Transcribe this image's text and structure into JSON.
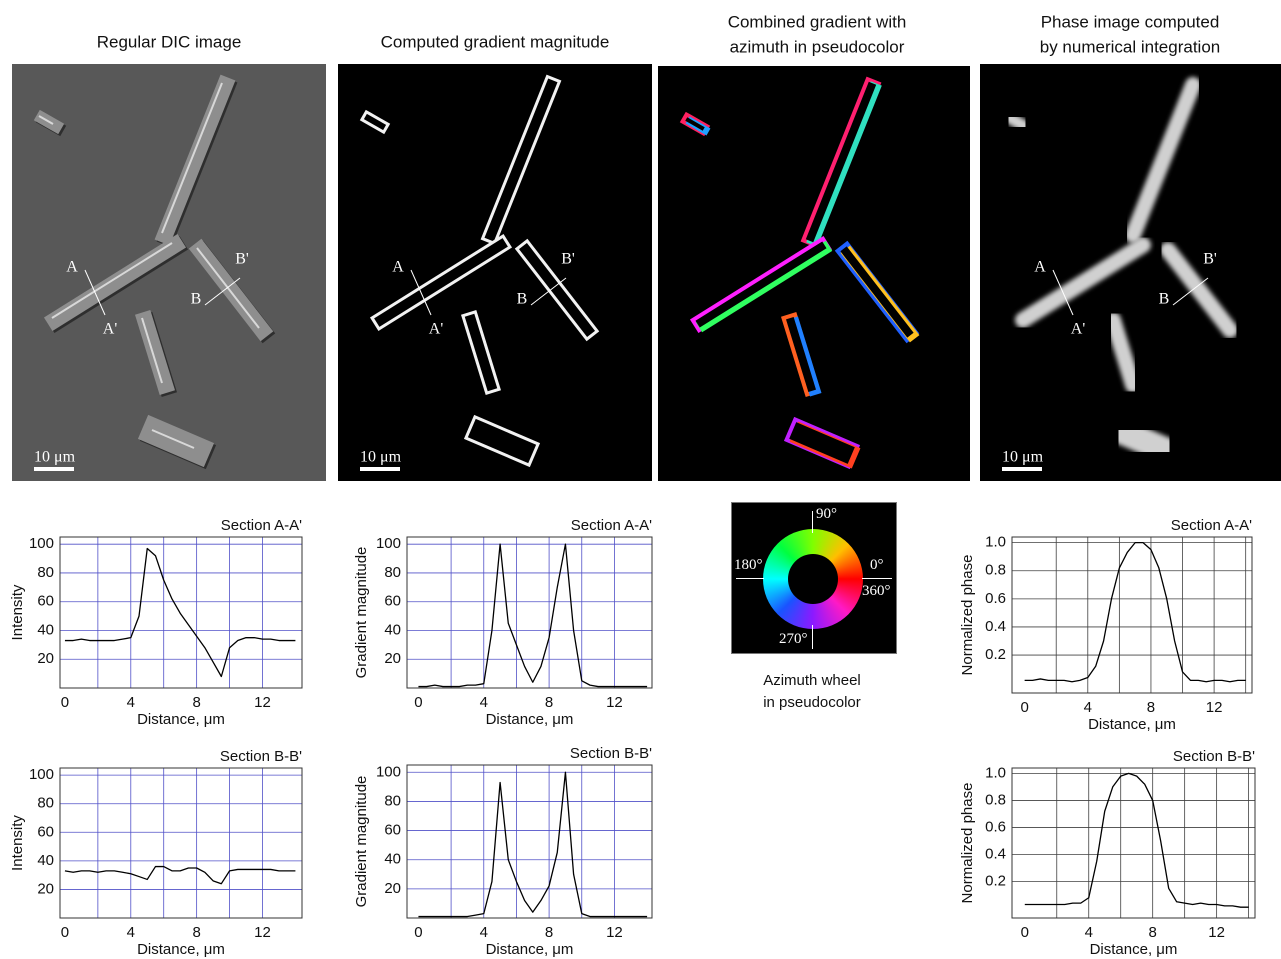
{
  "panels": [
    {
      "title_lines": [
        "Regular DIC image"
      ],
      "labels": [
        "A",
        "A'",
        "B",
        "B'"
      ],
      "scale": "10 μm"
    },
    {
      "title_lines": [
        "Computed gradient magnitude"
      ],
      "labels": [
        "A",
        "A'",
        "B",
        "B'"
      ],
      "scale": "10 μm"
    },
    {
      "title_lines": [
        "Combined gradient with",
        "azimuth in pseudocolor"
      ]
    },
    {
      "title_lines": [
        "Phase image computed",
        "by numerical integration"
      ],
      "labels": [
        "A",
        "A'",
        "B",
        "B'"
      ],
      "scale": "10 μm"
    }
  ],
  "wheel": {
    "angle_labels": [
      "90°",
      "0°",
      "180°",
      "360°",
      "270°"
    ],
    "caption_lines": [
      "Azimuth wheel",
      "in pseudocolor"
    ]
  },
  "chart_data": [
    {
      "type": "line",
      "title": "Section A-A'",
      "xlabel": "Distance, μm",
      "ylabel": "Intensity",
      "color": "#000000",
      "x": [
        0,
        0.5,
        1,
        1.5,
        2,
        2.5,
        3,
        3.5,
        4,
        4.5,
        5,
        5.5,
        6,
        6.5,
        7,
        7.5,
        8,
        8.5,
        9,
        9.5,
        10,
        10.5,
        11,
        11.5,
        12,
        12.5,
        13,
        13.5,
        14
      ],
      "values": [
        33,
        33,
        34,
        33,
        33,
        33,
        33,
        34,
        35,
        50,
        97,
        92,
        75,
        62,
        52,
        44,
        36,
        28,
        18,
        8,
        28,
        33,
        35,
        35,
        34,
        34,
        33,
        33,
        33
      ],
      "xlim": [
        -0.3,
        14.4
      ],
      "ylim": [
        0,
        105
      ],
      "xticks": [
        0,
        4,
        8,
        12
      ],
      "yticks": [
        20,
        40,
        60,
        80,
        100
      ],
      "xgrid": [
        2,
        4,
        6,
        8,
        10,
        12
      ],
      "grid": true,
      "grid_color": "#5050c8"
    },
    {
      "type": "line",
      "title": "Section A-A'",
      "xlabel": "Distance, μm",
      "ylabel": "Gradient magnitude",
      "color": "#000000",
      "x": [
        0,
        0.5,
        1,
        1.5,
        2,
        2.5,
        3,
        3.5,
        4,
        4.5,
        5,
        5.5,
        6,
        6.5,
        7,
        7.5,
        8,
        8.5,
        9,
        9.5,
        10,
        10.5,
        11,
        11.5,
        12,
        12.5,
        13,
        13.5,
        14
      ],
      "values": [
        1,
        1,
        2,
        1,
        1,
        1,
        2,
        2,
        3,
        40,
        100,
        45,
        30,
        15,
        4,
        15,
        35,
        70,
        100,
        40,
        5,
        2,
        1,
        1,
        1,
        1,
        1,
        1,
        1
      ],
      "xlim": [
        -0.7,
        14.3
      ],
      "ylim": [
        0,
        105
      ],
      "xticks": [
        0,
        4,
        8,
        12
      ],
      "yticks": [
        20,
        40,
        60,
        80,
        100
      ],
      "xgrid": [
        2,
        4,
        6,
        8,
        10,
        12
      ],
      "grid": true,
      "grid_color": "#5050c8"
    },
    {
      "type": "line",
      "title": "Section B-B'",
      "xlabel": "Distance, μm",
      "ylabel": "Intensity",
      "color": "#000000",
      "x": [
        0,
        0.5,
        1,
        1.5,
        2,
        2.5,
        3,
        3.5,
        4,
        4.5,
        5,
        5.5,
        6,
        6.5,
        7,
        7.5,
        8,
        8.5,
        9,
        9.5,
        10,
        10.5,
        11,
        11.5,
        12,
        12.5,
        13,
        13.5,
        14
      ],
      "values": [
        33,
        32,
        33,
        33,
        32,
        33,
        33,
        32,
        31,
        29,
        27,
        36,
        36,
        33,
        33,
        35,
        35,
        32,
        26,
        24,
        33,
        34,
        34,
        34,
        34,
        34,
        33,
        33,
        33
      ],
      "xlim": [
        -0.3,
        14.4
      ],
      "ylim": [
        0,
        105
      ],
      "xticks": [
        0,
        4,
        8,
        12
      ],
      "yticks": [
        20,
        40,
        60,
        80,
        100
      ],
      "xgrid": [
        2,
        4,
        6,
        8,
        10,
        12
      ],
      "grid": true,
      "grid_color": "#5050c8"
    },
    {
      "type": "line",
      "title": "Section B-B'",
      "xlabel": "Distance, μm",
      "ylabel": "Gradient magnitude",
      "color": "#000000",
      "x": [
        0,
        0.5,
        1,
        1.5,
        2,
        2.5,
        3,
        3.5,
        4,
        4.5,
        5,
        5.5,
        6,
        6.5,
        7,
        7.5,
        8,
        8.5,
        9,
        9.5,
        10,
        10.5,
        11,
        11.5,
        12,
        12.5,
        13,
        13.5,
        14
      ],
      "values": [
        1,
        1,
        1,
        1,
        1,
        1,
        1,
        2,
        3,
        25,
        93,
        40,
        25,
        12,
        4,
        12,
        22,
        45,
        100,
        30,
        3,
        1,
        1,
        1,
        1,
        1,
        1,
        1,
        1
      ],
      "xlim": [
        -0.7,
        14.3
      ],
      "ylim": [
        0,
        105
      ],
      "xticks": [
        0,
        4,
        8,
        12
      ],
      "yticks": [
        20,
        40,
        60,
        80,
        100
      ],
      "xgrid": [
        2,
        4,
        6,
        8,
        10,
        12
      ],
      "grid": true,
      "grid_color": "#5050c8"
    },
    {
      "type": "line",
      "title": "Section A-A'",
      "xlabel": "Distance, μm",
      "ylabel": "Normalized phase",
      "color": "#000000",
      "x": [
        0,
        0.5,
        1,
        1.5,
        2,
        2.5,
        3,
        3.5,
        4,
        4.5,
        5,
        5.5,
        6,
        6.5,
        7,
        7.5,
        8,
        8.5,
        9,
        9.5,
        10,
        10.5,
        11,
        11.5,
        12,
        12.5,
        13,
        13.5,
        14
      ],
      "values": [
        0.02,
        0.02,
        0.03,
        0.02,
        0.02,
        0.02,
        0.01,
        0.02,
        0.04,
        0.12,
        0.3,
        0.6,
        0.82,
        0.93,
        1.0,
        1.0,
        0.95,
        0.82,
        0.6,
        0.3,
        0.08,
        0.02,
        0.02,
        0.01,
        0.02,
        0.02,
        0.01,
        0.02,
        0.02
      ],
      "xlim": [
        -0.8,
        14.4
      ],
      "ylim": [
        -0.07,
        1.04
      ],
      "xticks": [
        0,
        4,
        8,
        12
      ],
      "yticks": [
        0.2,
        0.4,
        0.6,
        0.8,
        {
          "value": 1,
          "label": "1.0"
        }
      ],
      "xgrid": [
        2,
        4,
        6,
        8,
        10,
        12,
        14
      ],
      "grid": true,
      "grid_color": "#404040"
    },
    {
      "type": "line",
      "title": "Section B-B'",
      "xlabel": "Distance, μm",
      "ylabel": "Normalized phase",
      "color": "#000000",
      "x": [
        0,
        0.5,
        1,
        1.5,
        2,
        2.5,
        3,
        3.5,
        4,
        4.5,
        5,
        5.5,
        6,
        6.5,
        7,
        7.5,
        8,
        8.5,
        9,
        9.5,
        10,
        10.5,
        11,
        11.5,
        12,
        12.5,
        13,
        13.5,
        14
      ],
      "values": [
        0.03,
        0.03,
        0.03,
        0.03,
        0.03,
        0.03,
        0.04,
        0.04,
        0.08,
        0.35,
        0.72,
        0.9,
        0.98,
        1.0,
        0.98,
        0.92,
        0.8,
        0.5,
        0.15,
        0.05,
        0.04,
        0.03,
        0.04,
        0.03,
        0.03,
        0.02,
        0.02,
        0.01,
        0.01
      ],
      "xlim": [
        -0.8,
        14.4
      ],
      "ylim": [
        -0.07,
        1.04
      ],
      "xticks": [
        0,
        4,
        8,
        12
      ],
      "yticks": [
        0.2,
        0.4,
        0.6,
        0.8,
        {
          "value": 1,
          "label": "1.0"
        }
      ],
      "xgrid": [
        2,
        4,
        6,
        8,
        10,
        12,
        14
      ],
      "grid": true,
      "grid_color": "#404040"
    }
  ]
}
